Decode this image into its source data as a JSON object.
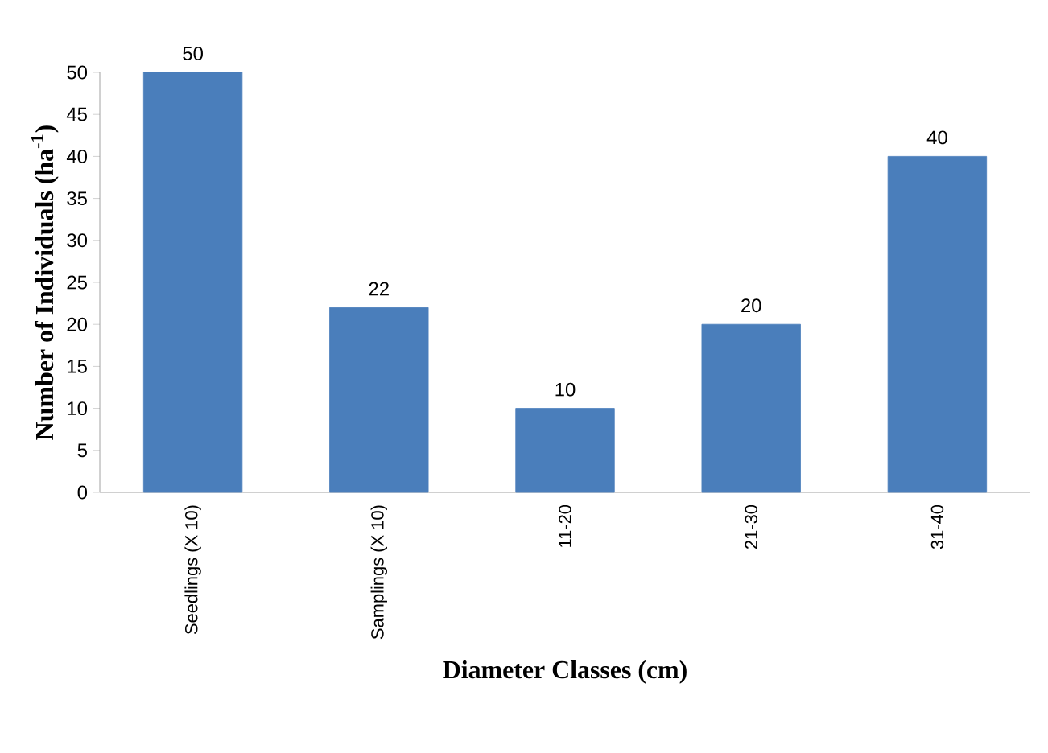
{
  "chart_data": {
    "type": "bar",
    "xlabel": "Diameter Classes (cm)",
    "ylabel": "Number of Individuals  (ha$^{-1}$)",
    "categories": [
      "Seedlings (X 10)",
      "Samplings (X 10)",
      "11-20",
      "21-30",
      "31-40"
    ],
    "values": [
      50,
      22,
      10,
      20,
      40
    ],
    "color": "#4a7ebb",
    "ylim": [
      0,
      50
    ],
    "yticks": [
      0,
      5,
      10,
      15,
      20,
      25,
      30,
      35,
      40,
      45,
      50
    ],
    "data_labels": true
  }
}
